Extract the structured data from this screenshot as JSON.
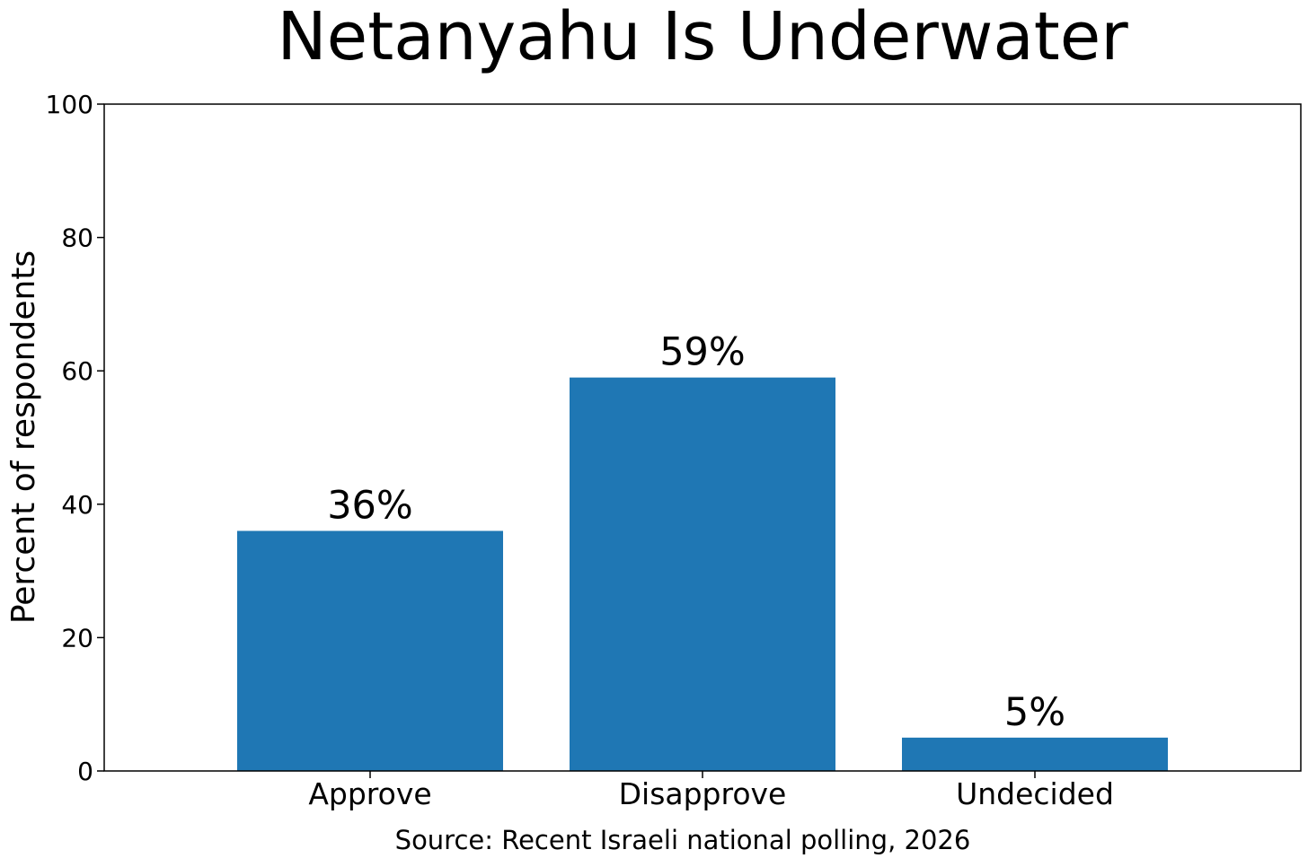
{
  "chart_data": {
    "type": "bar",
    "title": "Netanyahu Is Underwater",
    "categories": [
      "Approve",
      "Disapprove",
      "Undecided"
    ],
    "values": [
      36,
      59,
      5
    ],
    "data_labels": [
      "36%",
      "59%",
      "5%"
    ],
    "xlabel": "Source: Recent Israeli national polling, 2026",
    "ylabel": "Percent of respondents",
    "ylim": [
      0,
      100
    ],
    "yticks": [
      0,
      20,
      40,
      60,
      80,
      100
    ],
    "grid": false,
    "legend": "none",
    "bar_color": "#1f77b4"
  }
}
